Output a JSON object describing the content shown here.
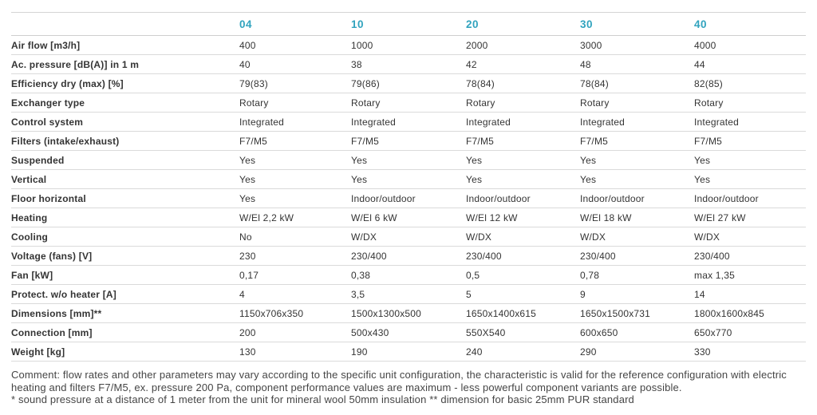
{
  "accent_color": "#31a3be",
  "table": {
    "columns": [
      "04",
      "10",
      "20",
      "30",
      "40"
    ],
    "rows": [
      {
        "label": "Air flow [m3/h]",
        "values": [
          "400",
          "1000",
          "2000",
          "3000",
          "4000"
        ]
      },
      {
        "label": "Ac. pressure [dB(A)] in 1 m",
        "values": [
          "40",
          "38",
          "42",
          "48",
          "44"
        ]
      },
      {
        "label": "Efficiency dry (max) [%]",
        "values": [
          "79(83)",
          "79(86)",
          "78(84)",
          "78(84)",
          "82(85)"
        ]
      },
      {
        "label": "Exchanger type",
        "values": [
          "Rotary",
          "Rotary",
          "Rotary",
          "Rotary",
          "Rotary"
        ]
      },
      {
        "label": "Control system",
        "values": [
          "Integrated",
          "Integrated",
          "Integrated",
          "Integrated",
          "Integrated"
        ]
      },
      {
        "label": "Filters (intake/exhaust)",
        "values": [
          "F7/M5",
          "F7/M5",
          "F7/M5",
          "F7/M5",
          "F7/M5"
        ]
      },
      {
        "label": "Suspended",
        "values": [
          "Yes",
          "Yes",
          "Yes",
          "Yes",
          "Yes"
        ]
      },
      {
        "label": "Vertical",
        "values": [
          "Yes",
          "Yes",
          "Yes",
          "Yes",
          "Yes"
        ]
      },
      {
        "label": "Floor horizontal",
        "values": [
          "Yes",
          "Indoor/outdoor",
          "Indoor/outdoor",
          "Indoor/outdoor",
          "Indoor/outdoor"
        ]
      },
      {
        "label": "Heating",
        "values": [
          "W/El 2,2 kW",
          "W/El 6 kW",
          "W/El 12 kW",
          "W/El 18 kW",
          "W/El 27 kW"
        ]
      },
      {
        "label": "Cooling",
        "values": [
          "No",
          "W/DX",
          "W/DX",
          "W/DX",
          "W/DX"
        ]
      },
      {
        "label": "Voltage (fans) [V]",
        "values": [
          "230",
          "230/400",
          "230/400",
          "230/400",
          "230/400"
        ]
      },
      {
        "label": "Fan [kW]",
        "values": [
          "0,17",
          "0,38",
          "0,5",
          "0,78",
          "max 1,35"
        ]
      },
      {
        "label": "Protect. w/o heater [A]",
        "values": [
          "4",
          "3,5",
          "5",
          "9",
          "14"
        ]
      },
      {
        "label": "Dimensions [mm]**",
        "values": [
          "1150x706x350",
          "1500x1300x500",
          "1650x1400x615",
          "1650x1500x731",
          "1800x1600x845"
        ]
      },
      {
        "label": "Connection [mm]",
        "values": [
          "200",
          "500x430",
          "550X540",
          "600x650",
          "650x770"
        ]
      },
      {
        "label": "Weight [kg]",
        "values": [
          "130",
          "190",
          "240",
          "290",
          "330"
        ]
      }
    ]
  },
  "footnote": {
    "comment": "Comment: flow rates and other parameters may vary according to the specific unit configuration, the characteristic is valid for the reference configuration with electric heating and filters F7/M5, ex. pressure 200 Pa, component performance values are maximum - less powerful component variants are possible.",
    "asterisks": "* sound pressure at a distance of 1 meter from the unit for mineral wool 50mm insulation ** dimension for basic 25mm PUR standard"
  }
}
